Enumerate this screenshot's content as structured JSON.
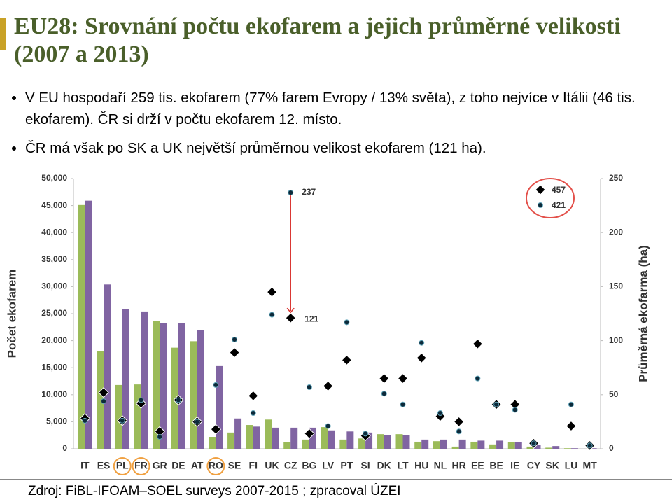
{
  "title": "EU28: Srovnání počtu ekofarem a jejich průměrné velikosti (2007 a 2013)",
  "bullets": [
    "V EU hospodaří 259 tis. ekofarem (77% farem Evropy / 13% světa), z toho nejvíce v Itálii (46 tis. ekofarem). ČR si drží v počtu ekofarem 12. místo.",
    "ČR má však po SK a UK největší průměrnou velikost ekofarem (121 ha)."
  ],
  "source": "Zdroj: FiBL-IFOAM–SOEL surveys 2007-2015 ; zpracoval ÚZEI",
  "chart_data": {
    "type": "bar",
    "categories": [
      "IT",
      "ES",
      "PL",
      "FR",
      "GR",
      "DE",
      "AT",
      "RO",
      "SE",
      "FI",
      "UK",
      "CZ",
      "BG",
      "LV",
      "PT",
      "SI",
      "DK",
      "LT",
      "HU",
      "NL",
      "HR",
      "EE",
      "BE",
      "IE",
      "CY",
      "SK",
      "LU",
      "MT"
    ],
    "highlight": [
      "PL",
      "FR",
      "RO"
    ],
    "y_label": "Počet ekofarem",
    "y2_label": "Průměrná ekofarma (ha)",
    "ylim": [
      0,
      50000
    ],
    "yticks": [
      0,
      {
        "value": 5000,
        "label": "5,000"
      },
      {
        "value": 10000,
        "label": "10,000"
      },
      {
        "value": 15000,
        "label": "15,000"
      },
      {
        "value": 20000,
        "label": "20,000"
      },
      {
        "value": 25000,
        "label": "25,000"
      },
      {
        "value": 30000,
        "label": "30,000"
      },
      {
        "value": 35000,
        "label": "35,000"
      },
      {
        "value": 40000,
        "label": "40,000"
      },
      {
        "value": 45000,
        "label": "45,000"
      },
      {
        "value": 50000,
        "label": "50,000"
      }
    ],
    "y2lim": [
      0,
      250
    ],
    "y2ticks": [
      0,
      50,
      100,
      150,
      200,
      250
    ],
    "series": [
      {
        "type": "bar",
        "color": "#9bbb59",
        "values": [
          45100,
          18100,
          11800,
          11900,
          23700,
          18700,
          19900,
          2200,
          3000,
          4400,
          5400,
          1200,
          1700,
          4000,
          1700,
          1900,
          2700,
          2700,
          1300,
          1400,
          400,
          1300,
          800,
          1200,
          400,
          200,
          100,
          0
        ]
      },
      {
        "type": "bar",
        "color": "#8064a2",
        "values": [
          45900,
          30400,
          25900,
          25400,
          23300,
          23200,
          21900,
          15300,
          5600,
          4100,
          3900,
          3900,
          3900,
          3400,
          3200,
          3000,
          2500,
          2500,
          1700,
          1700,
          1700,
          1500,
          1500,
          1200,
          700,
          500,
          100,
          100
        ]
      },
      {
        "type": "diamond",
        "axis": "y2",
        "color": "#000000",
        "values": [
          28,
          52,
          26,
          42,
          16,
          45,
          25,
          18,
          89,
          49,
          145,
          121,
          14,
          58,
          82,
          12,
          65,
          65,
          84,
          30,
          25,
          97,
          41,
          41,
          5,
          null,
          21,
          3
        ]
      },
      {
        "type": "circle",
        "axis": "y2",
        "color": "#0d2a3a",
        "values": [
          26,
          44,
          26,
          45,
          11,
          45,
          25,
          59,
          101,
          33,
          124,
          237,
          57,
          21,
          117,
          14,
          51,
          41,
          98,
          33,
          16,
          65,
          41,
          36,
          5,
          null,
          41,
          3
        ]
      }
    ],
    "annotations": [
      "237",
      "121",
      "457",
      "421"
    ]
  }
}
